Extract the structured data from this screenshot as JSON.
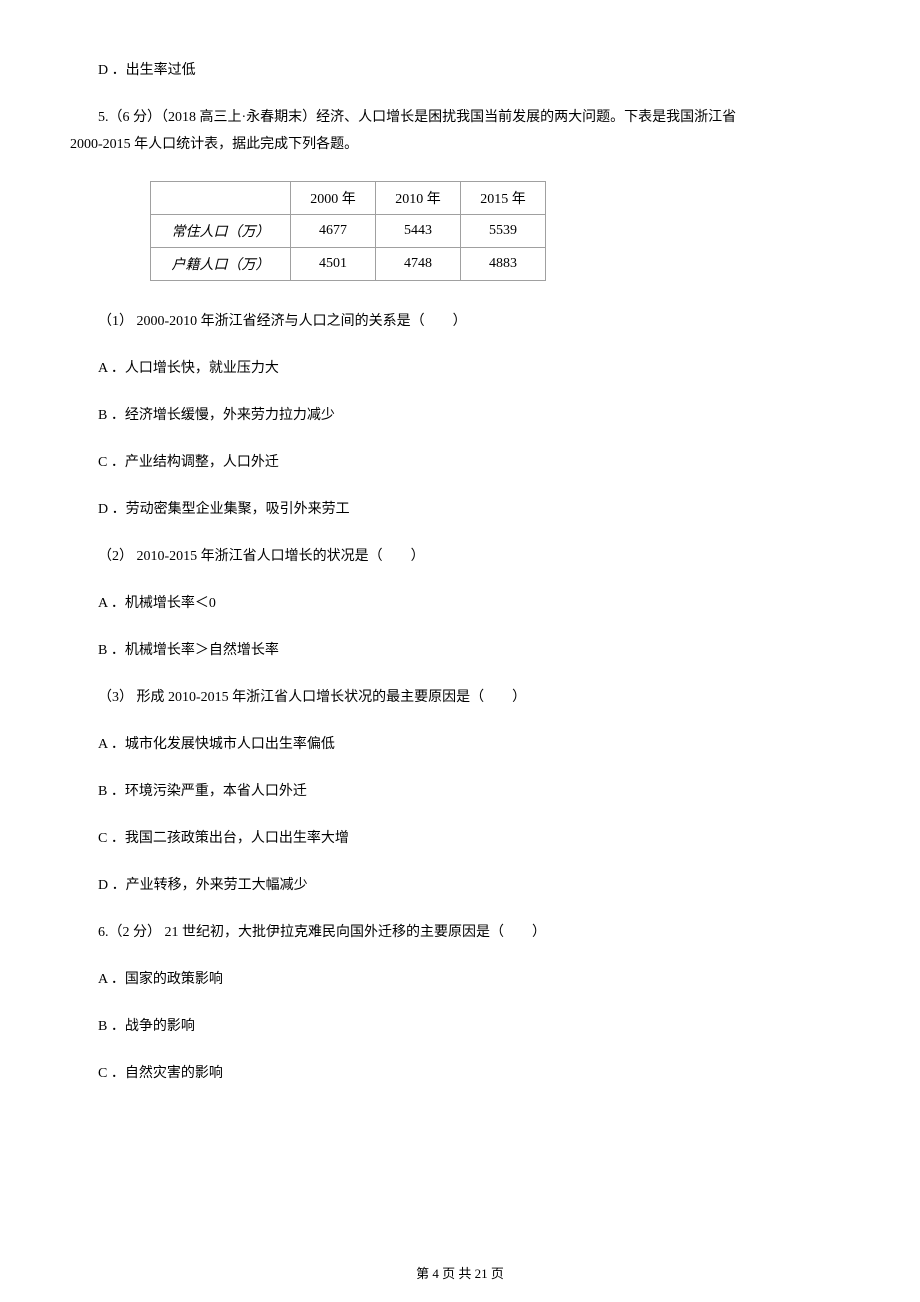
{
  "q4_optD": "D ．出生率过低",
  "q5_stem1": "5.（6 分）（2018 高三上·永春期末）经济、人口增长是困扰我国当前发展的两大问题。下表是我国浙江省",
  "q5_stem2": "2000-2015 年人口统计表，据此完成下列各题。",
  "table": {
    "h1": "",
    "h2": "2000 年",
    "h3": "2010 年",
    "h4": "2015 年",
    "r1c1": "常住人口（万）",
    "r1c2": "4677",
    "r1c3": "5443",
    "r1c4": "5539",
    "r2c1": "户籍人口（万）",
    "r2c2": "4501",
    "r2c3": "4748",
    "r2c4": "4883"
  },
  "q5_1": "（1） 2000-2010 年浙江省经济与人口之间的关系是（　　）",
  "q5_1A": "A ．人口增长快，就业压力大",
  "q5_1B": "B ．经济增长缓慢，外来劳力拉力减少",
  "q5_1C": "C ．产业结构调整，人口外迁",
  "q5_1D": "D ．劳动密集型企业集聚，吸引外来劳工",
  "q5_2": "（2） 2010-2015 年浙江省人口增长的状况是（　　）",
  "q5_2A": "A ．机械增长率＜0",
  "q5_2B": "B ．机械增长率＞自然增长率",
  "q5_3": "（3） 形成 2010-2015 年浙江省人口增长状况的最主要原因是（　　）",
  "q5_3A": "A ．城市化发展快城市人口出生率偏低",
  "q5_3B": "B ．环境污染严重，本省人口外迁",
  "q5_3C": "C ．我国二孩政策出台，人口出生率大增",
  "q5_3D": "D ．产业转移，外来劳工大幅减少",
  "q6_stem": "6.（2 分） 21 世纪初，大批伊拉克难民向国外迁移的主要原因是（　　）",
  "q6_A": "A ．国家的政策影响",
  "q6_B": "B ．战争的影响",
  "q6_C": "C ．自然灾害的影响",
  "footer": "第 4 页 共 21 页"
}
